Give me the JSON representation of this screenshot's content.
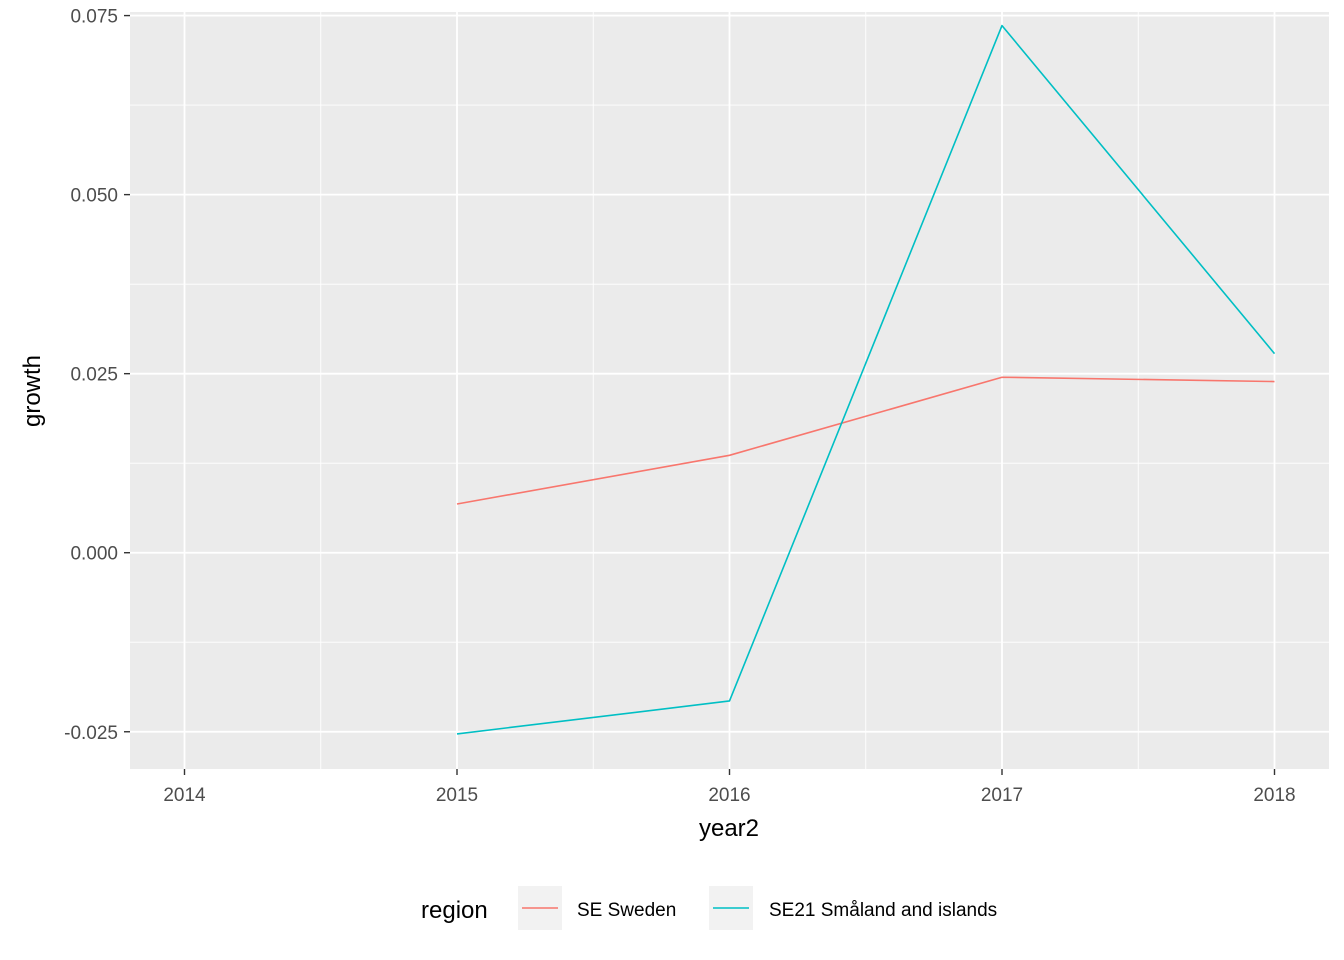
{
  "chart_data": {
    "type": "line",
    "title": "",
    "xlabel": "year2",
    "ylabel": "growth",
    "x": [
      2015,
      2016,
      2017,
      2018
    ],
    "xlim": [
      2013.8,
      2018.2
    ],
    "ylim": [
      -0.0302,
      0.0755
    ],
    "x_ticks": [
      2014,
      2015,
      2016,
      2017,
      2018
    ],
    "x_tick_labels": [
      "2014",
      "2015",
      "2016",
      "2017",
      "2018"
    ],
    "y_ticks": [
      -0.025,
      0,
      0.025,
      0.05,
      0.075
    ],
    "y_tick_labels": [
      "-0.025",
      "0.000",
      "0.025",
      "0.050",
      "0.075"
    ],
    "grid": true,
    "legend": {
      "title": "region",
      "position": "bottom"
    },
    "series": [
      {
        "name": "SE Sweden",
        "color": "#F8766D",
        "values": [
          0.0068,
          0.0136,
          0.0245,
          0.0239
        ]
      },
      {
        "name": "SE21 Småland and islands",
        "color": "#00BFC4",
        "values": [
          -0.0253,
          -0.0207,
          0.0736,
          0.0278
        ]
      }
    ]
  }
}
